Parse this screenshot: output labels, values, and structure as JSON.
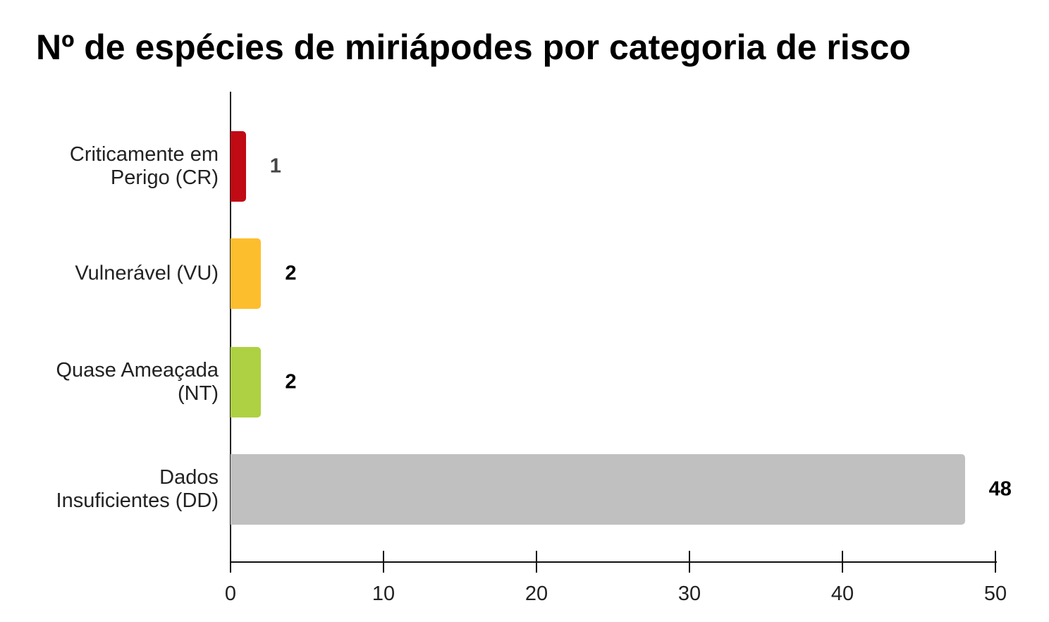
{
  "chart_data": {
    "type": "bar",
    "orientation": "horizontal",
    "title": "Nº de espécies de miriápodes por categoria de risco",
    "xlabel": "",
    "ylabel": "",
    "categories": [
      "Criticamente em Perigo (CR)",
      "Vulnerável (VU)",
      "Quase Ameaçada (NT)",
      "Dados Insuficientes (DD)"
    ],
    "category_lines": [
      [
        "Criticamente em",
        "Perigo (CR)"
      ],
      [
        "Vulnerável (VU)"
      ],
      [
        "Quase Ameaçada",
        "(NT)"
      ],
      [
        "Dados",
        "Insuficientes (DD)"
      ]
    ],
    "values": [
      1,
      2,
      2,
      48
    ],
    "value_labels": [
      "1",
      "2",
      "2",
      "48"
    ],
    "colors": [
      "#c00a14",
      "#fdbe2e",
      "#aed143",
      "#c0c0c0"
    ],
    "value_label_colors": [
      "#444444",
      "#000000",
      "#000000",
      "#000000"
    ],
    "xlim": [
      0,
      50
    ],
    "xticks": [
      0,
      10,
      20,
      30,
      40,
      50
    ],
    "xtick_labels": [
      "0",
      "10",
      "20",
      "30",
      "40",
      "50"
    ],
    "grid": false,
    "legend": null,
    "data_labels": true
  }
}
